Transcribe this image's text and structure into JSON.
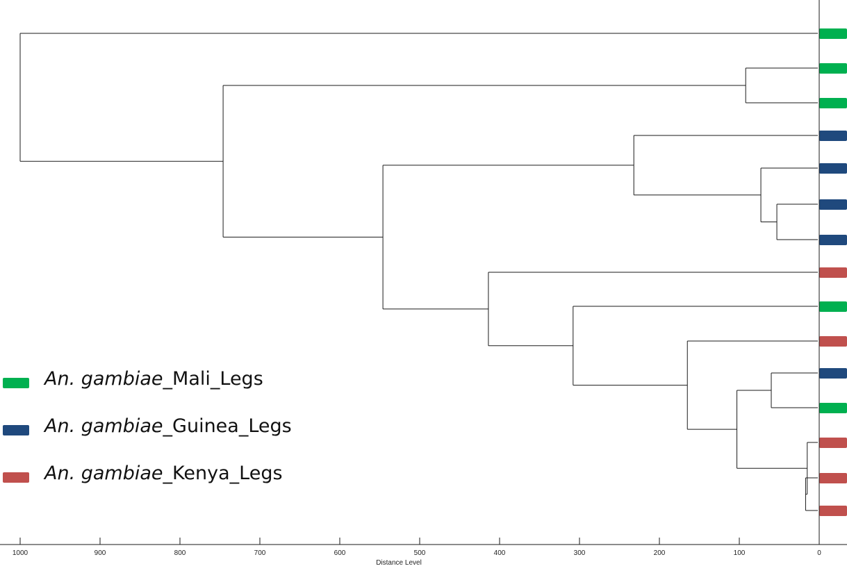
{
  "chart_data": {
    "type": "dendrogram",
    "xlabel": "Distance Level",
    "x_ticks": [
      1000,
      900,
      800,
      700,
      600,
      500,
      400,
      300,
      200,
      100,
      0
    ],
    "xlim": [
      1000,
      0
    ],
    "orientation": "leaves-right",
    "leaves": [
      {
        "group": "Mali"
      },
      {
        "group": "Mali"
      },
      {
        "group": "Mali"
      },
      {
        "group": "Guinea"
      },
      {
        "group": "Guinea"
      },
      {
        "group": "Guinea"
      },
      {
        "group": "Guinea"
      },
      {
        "group": "Kenya"
      },
      {
        "group": "Mali"
      },
      {
        "group": "Kenya"
      },
      {
        "group": "Guinea"
      },
      {
        "group": "Mali"
      },
      {
        "group": "Kenya"
      },
      {
        "group": "Kenya"
      },
      {
        "group": "Kenya"
      }
    ],
    "merges": [
      {
        "id": "n1",
        "children": [
          "L1",
          "L2"
        ],
        "height": 92
      },
      {
        "id": "n2",
        "children": [
          "L5",
          "L6"
        ],
        "height": 53
      },
      {
        "id": "n3",
        "children": [
          "L4",
          "n2"
        ],
        "height": 73
      },
      {
        "id": "n4",
        "children": [
          "L3",
          "n3"
        ],
        "height": 232
      },
      {
        "id": "n5",
        "children": [
          "L10",
          "L11"
        ],
        "height": 60
      },
      {
        "id": "n6",
        "children": [
          "L13",
          "L14"
        ],
        "height": 17
      },
      {
        "id": "n7",
        "children": [
          "L12",
          "n6"
        ],
        "height": 15
      },
      {
        "id": "n8",
        "children": [
          "n5",
          "n7"
        ],
        "height": 103
      },
      {
        "id": "n9",
        "children": [
          "L9",
          "n8"
        ],
        "height": 165
      },
      {
        "id": "n10",
        "children": [
          "L8",
          "n9"
        ],
        "height": 308
      },
      {
        "id": "n11",
        "children": [
          "L7",
          "n10"
        ],
        "height": 414
      },
      {
        "id": "n12",
        "children": [
          "n4",
          "n11"
        ],
        "height": 546
      },
      {
        "id": "n13",
        "children": [
          "n1",
          "n12"
        ],
        "height": 746
      },
      {
        "id": "n14",
        "children": [
          "L0",
          "n13"
        ],
        "height": 1000
      }
    ],
    "legend": [
      {
        "key": "Mali",
        "species": "An. gambiae",
        "suffix": "_Mali_Legs",
        "color": "#00b050"
      },
      {
        "key": "Guinea",
        "species": "An. gambiae",
        "suffix": "_Guinea_Legs",
        "color": "#1f497d"
      },
      {
        "key": "Kenya",
        "species": "An. gambiae",
        "suffix": "_Kenya_Legs",
        "color": "#c0504d"
      }
    ]
  }
}
